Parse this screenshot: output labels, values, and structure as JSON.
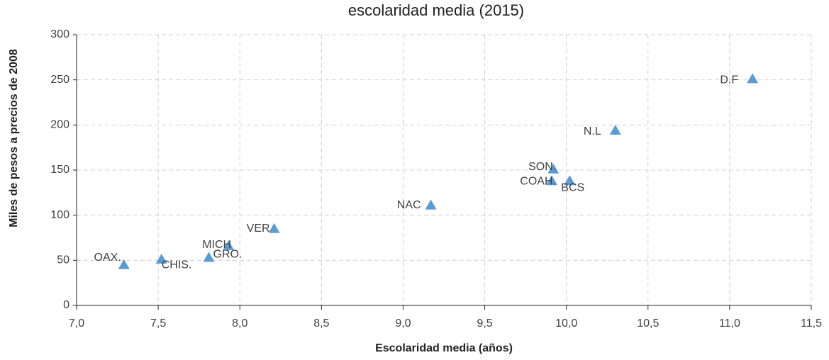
{
  "chart_data": {
    "type": "scatter",
    "title": "escolaridad media (2015)",
    "xlabel": "Escolaridad media (años)",
    "ylabel": "Miles de pesos a precios de 2008",
    "labels": [
      "OAX.",
      "CHIS.",
      "GRO.",
      "MICH",
      "VER",
      "NAC",
      "SON.",
      "COAH.",
      "BCS",
      "N.L",
      "D.F"
    ],
    "x": [
      7.29,
      7.52,
      7.81,
      7.93,
      8.21,
      9.17,
      9.92,
      9.91,
      10.02,
      10.3,
      11.14
    ],
    "values": [
      45,
      51,
      53,
      66,
      85,
      111,
      151,
      138,
      138,
      194,
      251
    ],
    "color": "#5b9bd5",
    "xlim": [
      7.0,
      11.5
    ],
    "xticks": [
      {
        "value": 7.0,
        "label": "7,0"
      },
      {
        "value": 7.5,
        "label": "7,5"
      },
      {
        "value": 8.0,
        "label": "8,0"
      },
      {
        "value": 8.5,
        "label": "8,5"
      },
      {
        "value": 9.0,
        "label": "9,0"
      },
      {
        "value": 9.5,
        "label": "9,5"
      },
      {
        "value": 10.0,
        "label": "10,0"
      },
      {
        "value": 10.5,
        "label": "10,5"
      },
      {
        "value": 11.0,
        "label": "11,0"
      },
      {
        "value": 11.5,
        "label": "11,5"
      }
    ],
    "ylim": [
      0,
      300
    ],
    "yticks": [
      0,
      50,
      100,
      150,
      200,
      250,
      300
    ],
    "grid": true
  }
}
